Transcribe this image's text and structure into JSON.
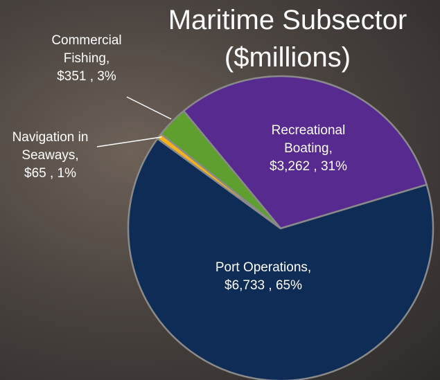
{
  "chart_data": {
    "type": "pie",
    "title": "Maritime Subsector ($millions)",
    "categories": [
      "Recreational Boating,",
      "Port Operations,",
      "Navigation in Seaways,",
      "Commercial Fishing,"
    ],
    "values": [
      3262,
      6733,
      65,
      351
    ],
    "value_labels": [
      "$3,262 , 31%",
      "$6,733 , 65%",
      "$65 , 1%",
      "$351 , 3%"
    ],
    "colors": [
      "#562a8e",
      "#0f2c57",
      "#f2b21e",
      "#5e9f2f"
    ]
  }
}
